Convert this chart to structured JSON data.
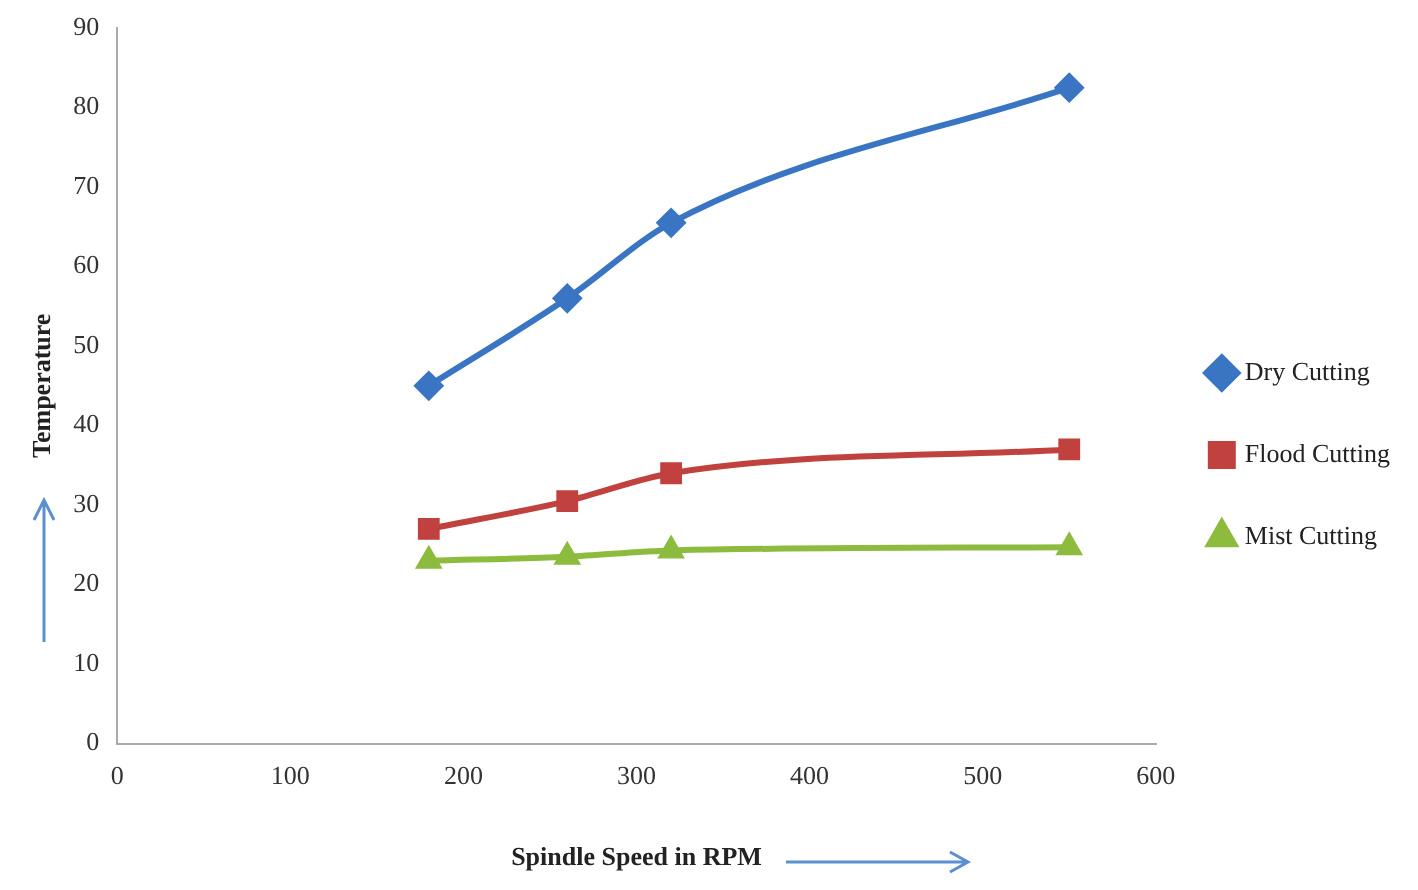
{
  "chart_data": {
    "type": "line",
    "xlabel": "Spindle Speed in RPM",
    "ylabel": "Temperature",
    "x": [
      180,
      260,
      320,
      550
    ],
    "series": [
      {
        "name": "Dry Cutting",
        "color": "#3a75c4",
        "marker": "diamond",
        "values": [
          45,
          56,
          65.5,
          82.5
        ]
      },
      {
        "name": "Flood Cutting",
        "color": "#c0413d",
        "marker": "square",
        "values": [
          27,
          30.5,
          34,
          37
        ]
      },
      {
        "name": "Mist Cutting",
        "color": "#8cbb3e",
        "marker": "triangle",
        "values": [
          23,
          23.5,
          24.3,
          24.7
        ]
      }
    ],
    "xlim": [
      0,
      600
    ],
    "xticks": [
      0,
      100,
      200,
      300,
      400,
      500,
      600
    ],
    "ylim": [
      0,
      90
    ],
    "yticks": [
      0,
      10,
      20,
      30,
      40,
      50,
      60,
      70,
      80,
      90
    ],
    "grid": false,
    "legend": "right",
    "line_style": "solid"
  }
}
